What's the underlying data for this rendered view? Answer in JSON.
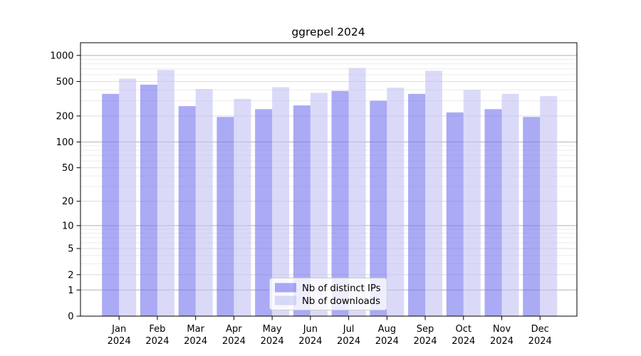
{
  "chart_data": {
    "type": "bar",
    "title": "ggrepel 2024",
    "categories": [
      "Jan",
      "Feb",
      "Mar",
      "Apr",
      "May",
      "Jun",
      "Jul",
      "Aug",
      "Sep",
      "Oct",
      "Nov",
      "Dec"
    ],
    "year_label": "2024",
    "series": [
      {
        "name": "Nb of distinct IPs",
        "color": "rgba(113,113,238,0.6)",
        "values": [
          360,
          460,
          260,
          195,
          240,
          265,
          390,
          300,
          360,
          220,
          240,
          195
        ]
      },
      {
        "name": "Nb of downloads",
        "color": "rgba(193,193,243,0.6)",
        "values": [
          540,
          680,
          410,
          315,
          430,
          370,
          715,
          425,
          665,
          400,
          360,
          340
        ]
      }
    ],
    "xlabel": "",
    "ylabel": "",
    "yscale": "log1p",
    "ylim": [
      0,
      1400
    ],
    "yticks": [
      0,
      1,
      2,
      5,
      10,
      20,
      50,
      100,
      200,
      500,
      1000
    ],
    "grid": "both",
    "legend_position": "lower-center-inside",
    "colors": {
      "grid_major": "#b2b2b2",
      "grid_mid": "#dcdcdc",
      "grid_minor": "#ececec",
      "axis": "#000000",
      "background": "#ffffff",
      "legend_border": "#cccccc"
    }
  }
}
